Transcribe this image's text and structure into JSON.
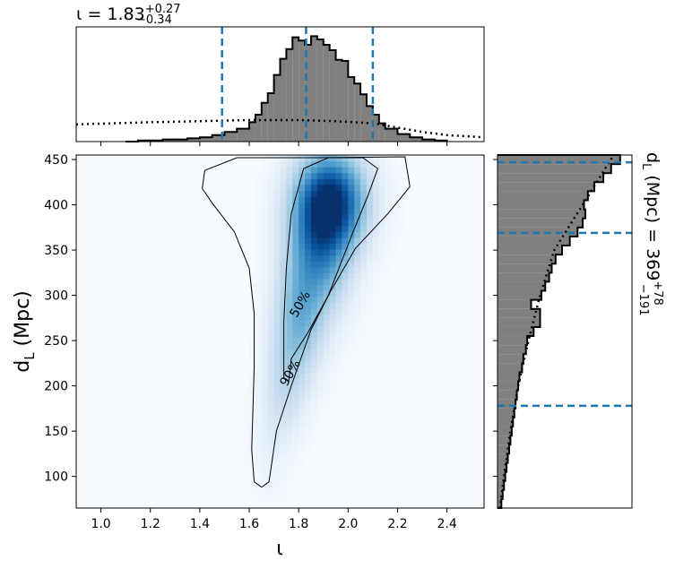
{
  "chart_data": [
    {
      "name": "top-marginal",
      "type": "histogram",
      "title": "ι = 1.83",
      "title_sup": "+0.27",
      "title_sub": "−0.34",
      "xlim": [
        0.9,
        2.55
      ],
      "bins": [
        {
          "x0": 1.1,
          "x1": 1.15,
          "v": 0.0
        },
        {
          "x0": 1.15,
          "x1": 1.2,
          "v": 0.01
        },
        {
          "x0": 1.2,
          "x1": 1.25,
          "v": 0.01
        },
        {
          "x0": 1.25,
          "x1": 1.3,
          "v": 0.02
        },
        {
          "x0": 1.3,
          "x1": 1.35,
          "v": 0.02
        },
        {
          "x0": 1.35,
          "x1": 1.4,
          "v": 0.03
        },
        {
          "x0": 1.4,
          "x1": 1.45,
          "v": 0.04
        },
        {
          "x0": 1.45,
          "x1": 1.5,
          "v": 0.06
        },
        {
          "x0": 1.5,
          "x1": 1.55,
          "v": 0.09
        },
        {
          "x0": 1.55,
          "x1": 1.6,
          "v": 0.12
        },
        {
          "x0": 1.6,
          "x1": 1.625,
          "v": 0.18
        },
        {
          "x0": 1.625,
          "x1": 1.65,
          "v": 0.25
        },
        {
          "x0": 1.65,
          "x1": 1.675,
          "v": 0.36
        },
        {
          "x0": 1.675,
          "x1": 1.7,
          "v": 0.45
        },
        {
          "x0": 1.7,
          "x1": 1.725,
          "v": 0.62
        },
        {
          "x0": 1.725,
          "x1": 1.75,
          "v": 0.77
        },
        {
          "x0": 1.75,
          "x1": 1.775,
          "v": 0.86
        },
        {
          "x0": 1.775,
          "x1": 1.8,
          "v": 0.97
        },
        {
          "x0": 1.8,
          "x1": 1.825,
          "v": 0.94
        },
        {
          "x0": 1.825,
          "x1": 1.85,
          "v": 0.9
        },
        {
          "x0": 1.85,
          "x1": 1.875,
          "v": 0.98
        },
        {
          "x0": 1.875,
          "x1": 1.9,
          "v": 0.95
        },
        {
          "x0": 1.9,
          "x1": 1.925,
          "v": 0.9
        },
        {
          "x0": 1.925,
          "x1": 1.95,
          "v": 0.85
        },
        {
          "x0": 1.95,
          "x1": 1.975,
          "v": 0.76
        },
        {
          "x0": 1.975,
          "x1": 2.0,
          "v": 0.75
        },
        {
          "x0": 2.0,
          "x1": 2.025,
          "v": 0.6
        },
        {
          "x0": 2.025,
          "x1": 2.05,
          "v": 0.54
        },
        {
          "x0": 2.05,
          "x1": 2.075,
          "v": 0.44
        },
        {
          "x0": 2.075,
          "x1": 2.1,
          "v": 0.33
        },
        {
          "x0": 2.1,
          "x1": 2.125,
          "v": 0.25
        },
        {
          "x0": 2.125,
          "x1": 2.15,
          "v": 0.17
        },
        {
          "x0": 2.15,
          "x1": 2.2,
          "v": 0.12
        },
        {
          "x0": 2.2,
          "x1": 2.25,
          "v": 0.07
        },
        {
          "x0": 2.25,
          "x1": 2.3,
          "v": 0.04
        },
        {
          "x0": 2.3,
          "x1": 2.35,
          "v": 0.02
        },
        {
          "x0": 2.35,
          "x1": 2.4,
          "v": 0.01
        }
      ],
      "prior_dotted": [
        [
          0.9,
          0.16
        ],
        [
          1.05,
          0.17
        ],
        [
          1.2,
          0.18
        ],
        [
          1.4,
          0.19
        ],
        [
          1.6,
          0.2
        ],
        [
          1.8,
          0.2
        ],
        [
          1.95,
          0.19
        ],
        [
          2.1,
          0.17
        ],
        [
          2.2,
          0.13
        ],
        [
          2.3,
          0.09
        ],
        [
          2.4,
          0.06
        ],
        [
          2.55,
          0.04
        ]
      ],
      "quantile_lines": [
        1.49,
        1.83,
        2.1
      ],
      "colors": {
        "fill": "#808080",
        "outline": "#000000",
        "quantile": "#1f77b4"
      }
    },
    {
      "name": "joint-density",
      "type": "heatmap",
      "xlabel": "ι",
      "ylabel": "d_L (Mpc)",
      "xlim": [
        0.9,
        2.55
      ],
      "ylim": [
        65,
        455
      ],
      "x_ticks": [
        "1.0",
        "1.2",
        "1.4",
        "1.6",
        "1.8",
        "2.0",
        "2.2",
        "2.4"
      ],
      "y_ticks": [
        "100",
        "150",
        "200",
        "250",
        "300",
        "350",
        "400",
        "450"
      ],
      "colormap": "Blues",
      "density_peaks": [
        {
          "x": 1.93,
          "y": 405,
          "sx": 0.1,
          "sy": 38,
          "w": 1.0
        },
        {
          "x": 1.88,
          "y": 345,
          "sx": 0.09,
          "sy": 48,
          "w": 0.55
        },
        {
          "x": 1.8,
          "y": 270,
          "sx": 0.07,
          "sy": 45,
          "w": 0.4
        },
        {
          "x": 1.74,
          "y": 200,
          "sx": 0.06,
          "sy": 40,
          "w": 0.22
        },
        {
          "x": 1.68,
          "y": 130,
          "sx": 0.05,
          "sy": 35,
          "w": 0.08
        }
      ],
      "contours": [
        {
          "label": "50%",
          "label_x": 1.82,
          "label_y": 288,
          "points": [
            [
              1.74,
              208
            ],
            [
              1.76,
              205
            ],
            [
              1.77,
              230
            ],
            [
              1.84,
              260
            ],
            [
              1.92,
              300
            ],
            [
              2.02,
              370
            ],
            [
              2.08,
              410
            ],
            [
              2.12,
              440
            ],
            [
              2.06,
              452
            ],
            [
              1.92,
              452
            ],
            [
              1.82,
              440
            ],
            [
              1.8,
              420
            ],
            [
              1.77,
              390
            ],
            [
              1.75,
              330
            ],
            [
              1.74,
              270
            ],
            [
              1.74,
              208
            ]
          ]
        },
        {
          "label": "90%",
          "label_x": 1.78,
          "label_y": 212,
          "points": [
            [
              1.65,
              88
            ],
            [
              1.68,
              94
            ],
            [
              1.71,
              150
            ],
            [
              1.77,
              200
            ],
            [
              1.85,
              262
            ],
            [
              1.93,
              305
            ],
            [
              2.03,
              352
            ],
            [
              2.16,
              390
            ],
            [
              2.25,
              420
            ],
            [
              2.23,
              453
            ],
            [
              1.88,
              452
            ],
            [
              1.55,
              452
            ],
            [
              1.42,
              438
            ],
            [
              1.41,
              418
            ],
            [
              1.45,
              402
            ],
            [
              1.54,
              370
            ],
            [
              1.6,
              330
            ],
            [
              1.62,
              280
            ],
            [
              1.62,
              220
            ],
            [
              1.61,
              130
            ],
            [
              1.62,
              94
            ],
            [
              1.65,
              88
            ]
          ]
        }
      ]
    },
    {
      "name": "right-marginal",
      "type": "histogram",
      "title": "d_L (Mpc) = 369",
      "title_sup": "+78",
      "title_sub": "−191",
      "ylim": [
        65,
        455
      ],
      "bins": [
        {
          "y0": 65,
          "y1": 75,
          "v": 0.03
        },
        {
          "y0": 75,
          "y1": 85,
          "v": 0.04
        },
        {
          "y0": 85,
          "y1": 95,
          "v": 0.05
        },
        {
          "y0": 95,
          "y1": 105,
          "v": 0.06
        },
        {
          "y0": 105,
          "y1": 115,
          "v": 0.07
        },
        {
          "y0": 115,
          "y1": 125,
          "v": 0.08
        },
        {
          "y0": 125,
          "y1": 135,
          "v": 0.09
        },
        {
          "y0": 135,
          "y1": 145,
          "v": 0.1
        },
        {
          "y0": 145,
          "y1": 155,
          "v": 0.11
        },
        {
          "y0": 155,
          "y1": 165,
          "v": 0.12
        },
        {
          "y0": 165,
          "y1": 175,
          "v": 0.13
        },
        {
          "y0": 175,
          "y1": 185,
          "v": 0.14
        },
        {
          "y0": 185,
          "y1": 195,
          "v": 0.15
        },
        {
          "y0": 195,
          "y1": 205,
          "v": 0.16
        },
        {
          "y0": 205,
          "y1": 215,
          "v": 0.17
        },
        {
          "y0": 215,
          "y1": 225,
          "v": 0.19
        },
        {
          "y0": 225,
          "y1": 235,
          "v": 0.2
        },
        {
          "y0": 235,
          "y1": 245,
          "v": 0.22
        },
        {
          "y0": 245,
          "y1": 255,
          "v": 0.23
        },
        {
          "y0": 255,
          "y1": 265,
          "v": 0.28
        },
        {
          "y0": 265,
          "y1": 275,
          "v": 0.33
        },
        {
          "y0": 275,
          "y1": 285,
          "v": 0.33
        },
        {
          "y0": 285,
          "y1": 295,
          "v": 0.26
        },
        {
          "y0": 295,
          "y1": 305,
          "v": 0.34
        },
        {
          "y0": 305,
          "y1": 315,
          "v": 0.37
        },
        {
          "y0": 315,
          "y1": 325,
          "v": 0.4
        },
        {
          "y0": 325,
          "y1": 335,
          "v": 0.42
        },
        {
          "y0": 335,
          "y1": 345,
          "v": 0.45
        },
        {
          "y0": 345,
          "y1": 355,
          "v": 0.5
        },
        {
          "y0": 355,
          "y1": 365,
          "v": 0.56
        },
        {
          "y0": 365,
          "y1": 375,
          "v": 0.62
        },
        {
          "y0": 375,
          "y1": 385,
          "v": 0.66
        },
        {
          "y0": 385,
          "y1": 395,
          "v": 0.68
        },
        {
          "y0": 395,
          "y1": 405,
          "v": 0.67
        },
        {
          "y0": 405,
          "y1": 415,
          "v": 0.7
        },
        {
          "y0": 415,
          "y1": 425,
          "v": 0.75
        },
        {
          "y0": 425,
          "y1": 435,
          "v": 0.82
        },
        {
          "y0": 435,
          "y1": 445,
          "v": 0.88
        },
        {
          "y0": 445,
          "y1": 455,
          "v": 0.95
        }
      ],
      "prior_dotted": [
        [
          65,
          0.02
        ],
        [
          100,
          0.05
        ],
        [
          150,
          0.1
        ],
        [
          200,
          0.16
        ],
        [
          250,
          0.24
        ],
        [
          300,
          0.33
        ],
        [
          350,
          0.44
        ],
        [
          400,
          0.66
        ],
        [
          455,
          0.9
        ]
      ],
      "quantile_lines": [
        178,
        369,
        447
      ],
      "colors": {
        "fill": "#808080",
        "outline": "#000000",
        "quantile": "#1f77b4"
      }
    }
  ]
}
